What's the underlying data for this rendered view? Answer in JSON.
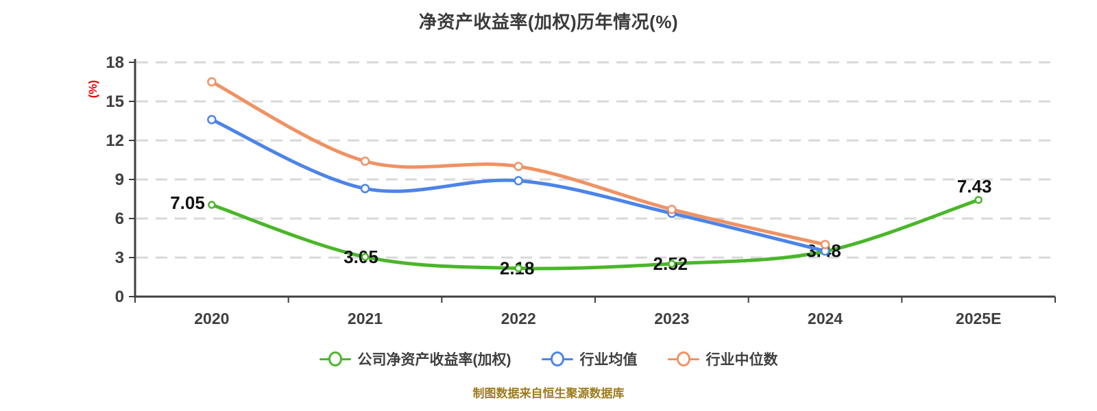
{
  "header": {
    "title": "净资产收益率(加权)历年情况(%)"
  },
  "chart_data": {
    "type": "line",
    "title": "净资产收益率(加权)历年情况(%)",
    "ylabel": "(%)",
    "xlabel": "",
    "categories": [
      "2020",
      "2021",
      "2022",
      "2023",
      "2024",
      "2025E"
    ],
    "y_axis": {
      "min": 0,
      "max": 18,
      "ticks": [
        0,
        3,
        6,
        9,
        12,
        15,
        18
      ]
    },
    "grid": "horizontal-dashed",
    "legend_position": "bottom-center",
    "series": [
      {
        "name": "公司净资产收益率(加权)",
        "color": "#4ab62a",
        "values": [
          7.05,
          3.05,
          2.18,
          2.52,
          3.48,
          7.43
        ],
        "data_labels": [
          "7.05",
          "3.05",
          "2.18",
          "2.52",
          "3.48",
          "7.43"
        ]
      },
      {
        "name": "行业均值",
        "color": "#4c84e8",
        "values": [
          13.6,
          8.3,
          8.9,
          6.4,
          3.5
        ],
        "data_labels": []
      },
      {
        "name": "行业中位数",
        "color": "#ef9263",
        "values": [
          16.5,
          10.4,
          10.0,
          6.7,
          4.0
        ],
        "data_labels": []
      }
    ],
    "colors": {
      "axis": "#3f3f3f",
      "tick_label": "#3f3f3f",
      "grid": "#d8d8d8",
      "ylabel": "#ec0000",
      "data_label": "#111111",
      "marker_fill": "#ffffff"
    }
  },
  "footer": {
    "source": "制图数据来自恒生聚源数据库",
    "color": "#9d7c1e"
  }
}
